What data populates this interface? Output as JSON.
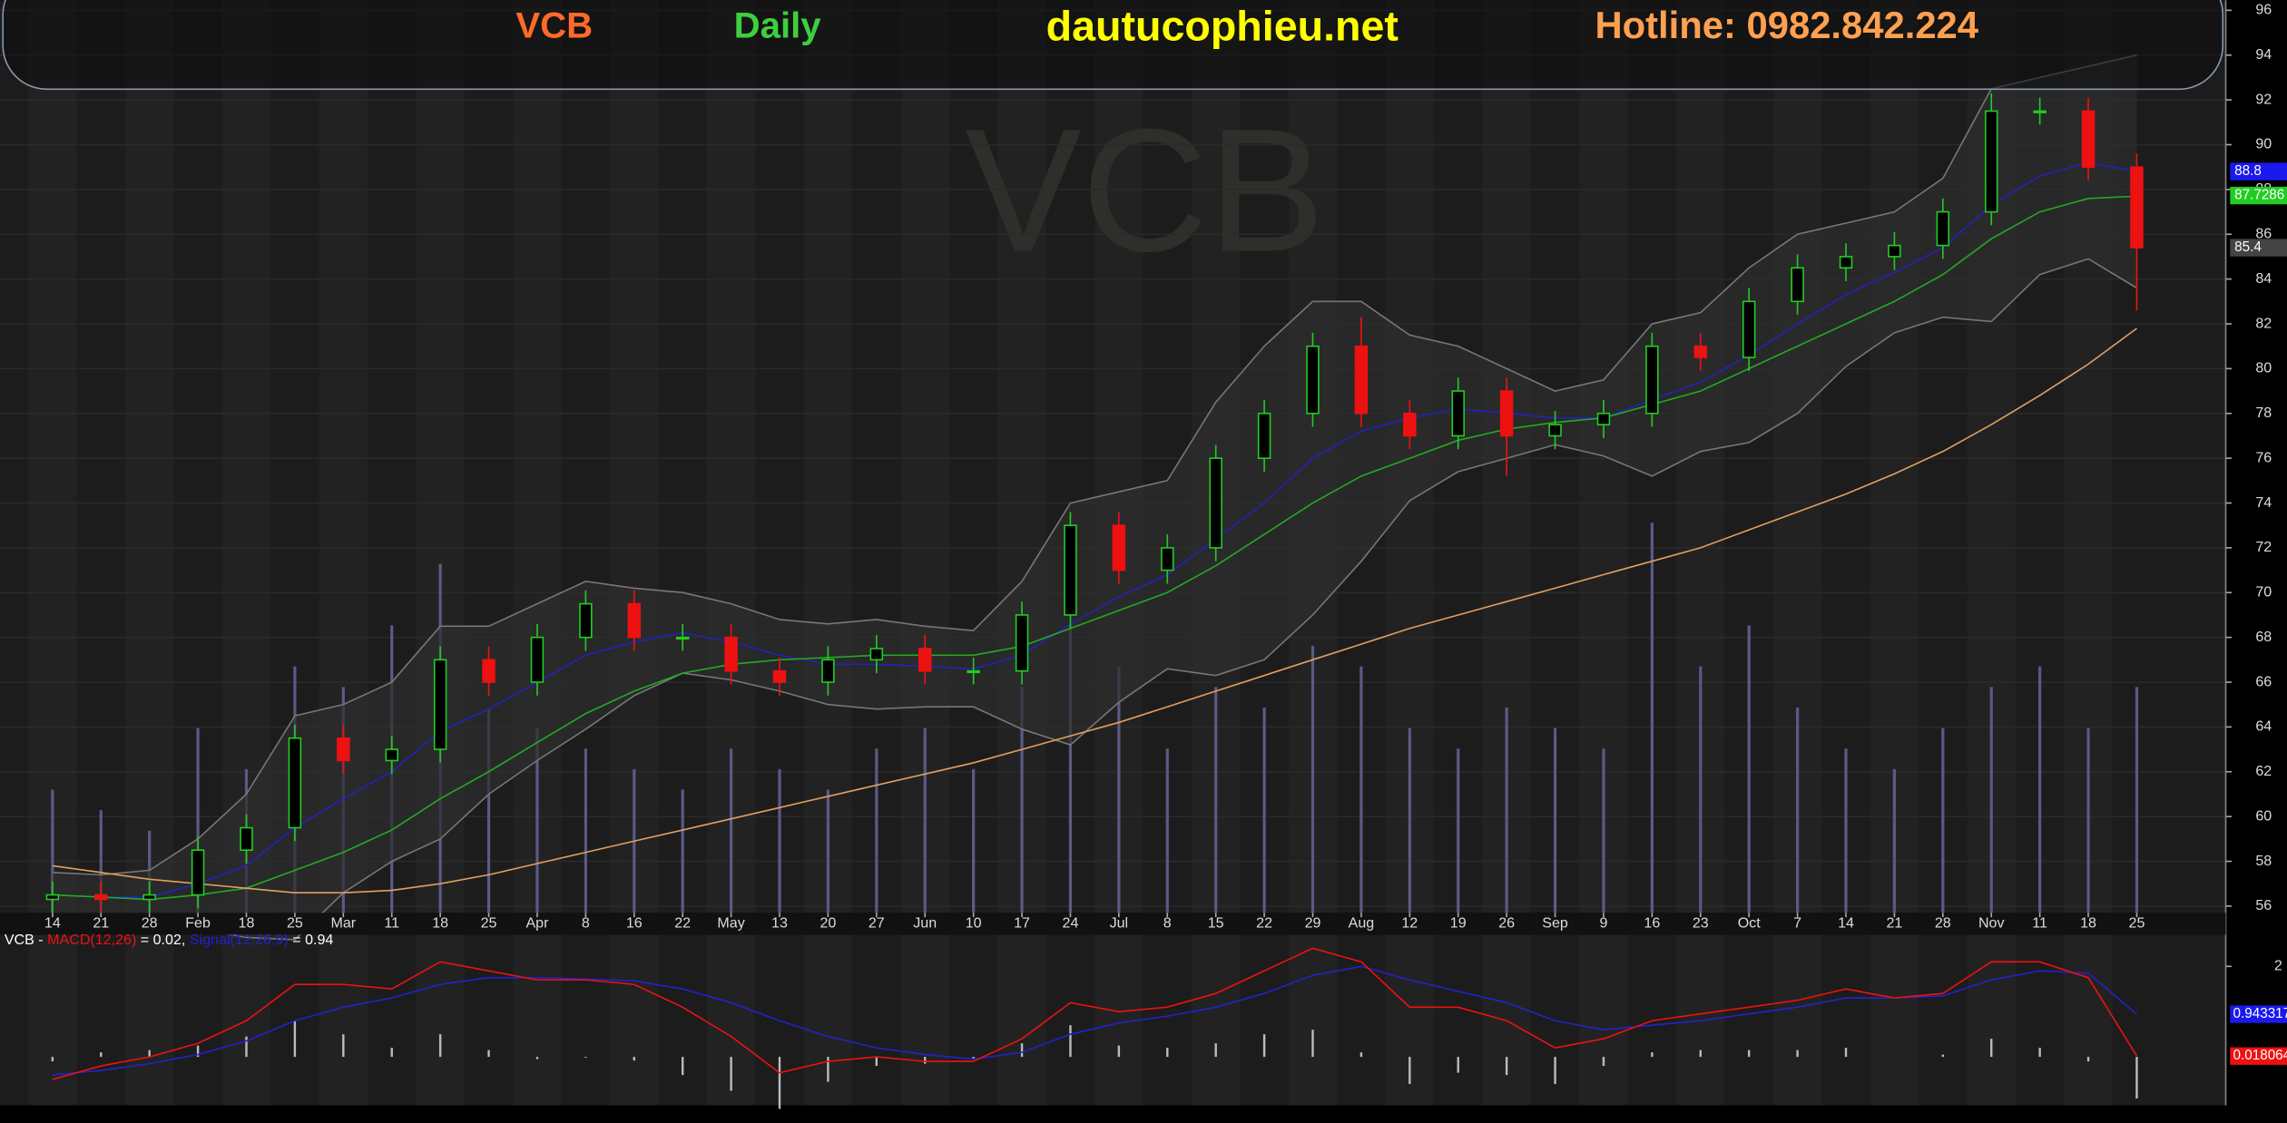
{
  "chart_data": {
    "type": "candlestick",
    "header": {
      "symbol": "VCB",
      "period": "Daily",
      "site": "dautucophieu.net",
      "hotline": "Hotline: 0982.842.224"
    },
    "watermark": "VCB",
    "categories": [
      "14",
      "21",
      "28",
      "Feb",
      "18",
      "25",
      "Mar",
      "11",
      "18",
      "25",
      "Apr",
      "8",
      "16",
      "22",
      "May",
      "13",
      "20",
      "27",
      "Jun",
      "10",
      "17",
      "24",
      "Jul",
      "8",
      "15",
      "22",
      "29",
      "Aug",
      "12",
      "19",
      "26",
      "Sep",
      "9",
      "16",
      "23",
      "Oct",
      "7",
      "14",
      "21",
      "28",
      "Nov",
      "11",
      "18",
      "25"
    ],
    "open": [
      56.3,
      56.5,
      56.3,
      56.5,
      58.5,
      59.5,
      63.5,
      62.5,
      63,
      67,
      66,
      68,
      69.5,
      68,
      68,
      66.5,
      66,
      67,
      67.5,
      66.5,
      66.5,
      69,
      73,
      71,
      72,
      76,
      78,
      81,
      78,
      77,
      79,
      77,
      77.5,
      78,
      81,
      80.5,
      83,
      84.5,
      85,
      85.5,
      87,
      91.5,
      91.5,
      89
    ],
    "high": [
      57.1,
      57.1,
      57.1,
      59.1,
      60.1,
      64.1,
      64.1,
      63.6,
      67.6,
      67.6,
      68.6,
      70.1,
      70.1,
      68.6,
      68.6,
      67.1,
      67.6,
      68.1,
      68.1,
      67.1,
      69.6,
      73.6,
      73.6,
      72.6,
      76.6,
      78.6,
      81.6,
      82.3,
      78.6,
      79.6,
      79.6,
      78.1,
      78.6,
      81.6,
      81.6,
      83.6,
      85.1,
      85.6,
      86.1,
      87.6,
      92.3,
      92.1,
      92.1,
      89.6
    ],
    "low": [
      55.7,
      55.7,
      55.7,
      55.9,
      57.9,
      58.9,
      61.9,
      61.9,
      62.4,
      65.4,
      65.4,
      67.4,
      67.4,
      67.4,
      65.9,
      65.4,
      65.4,
      66.4,
      65.9,
      65.9,
      65.9,
      68.4,
      70.4,
      70.4,
      71.4,
      75.4,
      77.4,
      77.4,
      76.4,
      76.4,
      75.2,
      76.4,
      76.9,
      77.4,
      79.9,
      79.9,
      82.4,
      83.9,
      84.4,
      84.9,
      86.4,
      90.9,
      88.4,
      82.6
    ],
    "close": [
      56.5,
      56.3,
      56.5,
      58.5,
      59.5,
      63.5,
      62.5,
      63,
      67,
      66,
      68,
      69.5,
      68,
      68,
      66.5,
      66,
      67,
      67.5,
      66.5,
      66.5,
      69,
      73,
      71,
      72,
      76,
      78,
      81,
      78,
      77,
      79,
      77,
      77.5,
      78,
      81,
      80.5,
      83,
      84.5,
      85,
      85.5,
      87,
      91.5,
      91.5,
      89,
      85.4
    ],
    "up_color": "#22cc22",
    "down_color": "#ee1111",
    "ylim": [
      55.7,
      96.45
    ],
    "yticks": [
      56,
      58,
      60,
      62,
      64,
      66,
      68,
      70,
      72,
      74,
      76,
      78,
      80,
      82,
      84,
      86,
      88,
      90,
      92,
      94,
      96
    ],
    "volume": {
      "color": "#5a5a86",
      "ylim": [
        0,
        100
      ],
      "values": [
        30,
        25,
        20,
        45,
        35,
        60,
        55,
        70,
        85,
        50,
        45,
        40,
        35,
        30,
        40,
        35,
        30,
        40,
        45,
        35,
        55,
        70,
        60,
        40,
        55,
        50,
        65,
        60,
        45,
        40,
        50,
        45,
        40,
        95,
        60,
        70,
        50,
        40,
        35,
        45,
        55,
        60,
        45,
        55
      ]
    },
    "bollinger": {
      "color": "#777777",
      "upper": [
        57.5,
        57.4,
        57.6,
        59,
        61,
        64.5,
        65,
        66,
        68.5,
        68.5,
        69.5,
        70.5,
        70.2,
        70,
        69.5,
        68.8,
        68.6,
        68.8,
        68.5,
        68.3,
        70.5,
        74,
        74.5,
        75,
        78.5,
        81,
        83,
        83,
        81.5,
        81,
        80,
        79,
        79.5,
        82,
        82.5,
        84.5,
        86,
        86.5,
        87,
        88.5,
        92.5,
        93,
        93.5,
        94
      ],
      "lower": [
        55.5,
        55.4,
        55.2,
        55,
        54.6,
        54.5,
        56.6,
        58,
        59,
        61,
        62.5,
        63.9,
        65.4,
        66.4,
        66.1,
        65.6,
        65,
        64.8,
        64.9,
        64.9,
        63.9,
        63.2,
        65.1,
        66.6,
        66.3,
        67,
        69,
        71.4,
        74.1,
        75.4,
        76,
        76.6,
        76.1,
        75.2,
        76.3,
        76.7,
        78,
        80.1,
        81.6,
        82.3,
        82.1,
        84.2,
        84.9,
        83.6
      ]
    },
    "overlays": [
      {
        "color": "#2222bb",
        "values": [
          56.5,
          56.4,
          56.4,
          57,
          57.8,
          59.5,
          60.8,
          62,
          63.8,
          64.8,
          66,
          67.2,
          67.8,
          68.2,
          67.8,
          67.2,
          66.8,
          66.8,
          66.7,
          66.6,
          67.2,
          68.6,
          69.8,
          70.8,
          72.4,
          74,
          76,
          77.2,
          77.8,
          78.2,
          78,
          77.8,
          77.8,
          78.6,
          79.4,
          80.6,
          82,
          83.3,
          84.3,
          85.4,
          87.3,
          88.6,
          89.2,
          88.8
        ]
      },
      {
        "color": "#22aa22",
        "values": [
          56.5,
          56.4,
          56.3,
          56.5,
          56.8,
          57.6,
          58.4,
          59.4,
          60.8,
          62,
          63.3,
          64.6,
          65.6,
          66.4,
          66.8,
          67,
          67.1,
          67.2,
          67.2,
          67.2,
          67.6,
          68.4,
          69.2,
          70,
          71.2,
          72.6,
          74,
          75.2,
          76,
          76.8,
          77.3,
          77.6,
          77.8,
          78.4,
          79,
          80,
          81,
          82,
          83,
          84.2,
          85.8,
          87,
          87.6,
          87.7
        ]
      },
      {
        "color": "#e0a060",
        "values": [
          57.8,
          57.5,
          57.2,
          57,
          56.8,
          56.6,
          56.6,
          56.7,
          57,
          57.4,
          57.9,
          58.4,
          58.9,
          59.4,
          59.9,
          60.4,
          60.9,
          61.4,
          61.9,
          62.4,
          63,
          63.6,
          64.2,
          64.9,
          65.6,
          66.3,
          67,
          67.7,
          68.4,
          69,
          69.6,
          70.2,
          70.8,
          71.4,
          72,
          72.8,
          73.6,
          74.4,
          75.3,
          76.3,
          77.5,
          78.8,
          80.2,
          81.8
        ]
      }
    ],
    "markers": [
      {
        "value": 88.8,
        "label": "88.8",
        "color": "#1a1aee"
      },
      {
        "value": 87.7286,
        "label": "87.7286",
        "color": "#22cc22"
      },
      {
        "value": 85.4,
        "label": "85.4",
        "color": "#444444"
      }
    ],
    "macd": {
      "legend": [
        {
          "text": "VCB - ",
          "color": "#ffffff"
        },
        {
          "text": "MACD(12,26)",
          "color": "#ee1111"
        },
        {
          "text": " = 0.02, ",
          "color": "#ffffff"
        },
        {
          "text": "Signal(12,26,9)",
          "color": "#2222cc"
        },
        {
          "text": " = 0.94",
          "color": "#ffffff"
        }
      ],
      "ylim": [
        -1.07,
        2.7
      ],
      "yticks": [
        2
      ],
      "macd": {
        "color": "#ee1111",
        "values": [
          -0.5,
          -0.2,
          0,
          0.3,
          0.8,
          1.6,
          1.6,
          1.5,
          2.1,
          1.9,
          1.7,
          1.7,
          1.6,
          1.1,
          0.45,
          -0.35,
          -0.1,
          0,
          -0.1,
          -0.1,
          0.4,
          1.2,
          1,
          1.1,
          1.4,
          1.9,
          2.4,
          2.1,
          1.1,
          1.1,
          0.8,
          0.2,
          0.4,
          0.8,
          0.95,
          1.1,
          1.25,
          1.5,
          1.3,
          1.4,
          2.1,
          2.1,
          1.75,
          0.02
        ]
      },
      "signal": {
        "color": "#2222cc",
        "values": [
          -0.4,
          -0.3,
          -0.15,
          0.05,
          0.35,
          0.8,
          1.1,
          1.3,
          1.6,
          1.75,
          1.75,
          1.72,
          1.68,
          1.5,
          1.2,
          0.8,
          0.45,
          0.2,
          0.05,
          -0.05,
          0.1,
          0.5,
          0.75,
          0.9,
          1.1,
          1.4,
          1.8,
          2,
          1.7,
          1.45,
          1.2,
          0.8,
          0.6,
          0.7,
          0.8,
          0.95,
          1.1,
          1.3,
          1.3,
          1.35,
          1.7,
          1.9,
          1.85,
          0.94
        ]
      },
      "histogram": {
        "color": "#bbbbbb",
        "values": [
          -0.1,
          0.1,
          0.15,
          0.25,
          0.45,
          0.8,
          0.5,
          0.2,
          0.5,
          0.15,
          -0.05,
          -0.02,
          -0.08,
          -0.4,
          -0.75,
          -1.15,
          -0.55,
          -0.2,
          -0.15,
          -0.05,
          0.3,
          0.7,
          0.25,
          0.2,
          0.3,
          0.5,
          0.6,
          0.1,
          -0.6,
          -0.35,
          -0.4,
          -0.6,
          -0.2,
          0.1,
          0.15,
          0.15,
          0.15,
          0.2,
          0,
          0.05,
          0.4,
          0.2,
          -0.1,
          -0.92
        ]
      },
      "markers": [
        {
          "value": 0.943317,
          "label": "0.943317",
          "color": "#1a1aee"
        },
        {
          "value": 0.018064,
          "label": "0.018064",
          "color": "#ee1111"
        }
      ]
    }
  }
}
